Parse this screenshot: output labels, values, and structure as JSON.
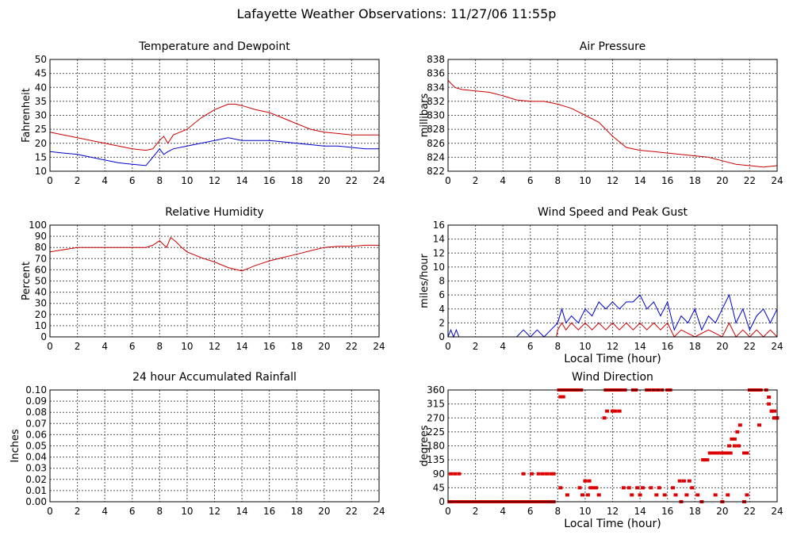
{
  "page": {
    "title": "Lafayette Weather Observations: 11/27/06 11:55p"
  },
  "chart_data": [
    {
      "id": "temp",
      "type": "line",
      "title": "Temperature and Dewpoint",
      "xlabel": "",
      "ylabel": "Fahrenheit",
      "xlim": [
        0,
        24
      ],
      "ylim": [
        10,
        50
      ],
      "xticks": [
        0,
        2,
        4,
        6,
        8,
        10,
        12,
        14,
        16,
        18,
        20,
        22,
        24
      ],
      "yticks": [
        10,
        15,
        20,
        25,
        30,
        35,
        40,
        45,
        50
      ],
      "grid": true,
      "series": [
        {
          "color": "#cc0000",
          "x": [
            0,
            1,
            2,
            3,
            4,
            5,
            6,
            7,
            7.5,
            8,
            8.3,
            8.6,
            9,
            10,
            11,
            12,
            12.5,
            13,
            13.5,
            14,
            15,
            16,
            17,
            18,
            19,
            20,
            21,
            22,
            23,
            24
          ],
          "y": [
            24,
            23,
            22,
            21,
            20,
            19,
            18,
            17.5,
            18,
            21,
            22.5,
            20,
            23,
            25,
            29,
            32,
            33,
            34,
            34,
            33.5,
            32,
            31,
            29,
            27,
            25,
            24,
            23.5,
            23,
            23,
            23
          ]
        },
        {
          "color": "#0000cc",
          "x": [
            0,
            1,
            2,
            3,
            4,
            5,
            6,
            7,
            7.5,
            8,
            8.3,
            8.6,
            9,
            10,
            11,
            12,
            12.5,
            13,
            13.5,
            14,
            15,
            16,
            17,
            18,
            19,
            20,
            21,
            22,
            23,
            24
          ],
          "y": [
            17,
            16.5,
            16,
            15,
            14,
            13,
            12.5,
            12,
            15,
            18,
            16,
            17,
            18,
            19,
            20,
            21,
            21.5,
            22,
            21.5,
            21,
            21,
            21,
            20.5,
            20,
            19.5,
            19,
            19,
            18.5,
            18,
            18
          ]
        }
      ]
    },
    {
      "id": "pressure",
      "type": "line",
      "title": "Air Pressure",
      "xlabel": "",
      "ylabel": "millibars",
      "xlim": [
        0,
        24
      ],
      "ylim": [
        822,
        838
      ],
      "xticks": [
        0,
        2,
        4,
        6,
        8,
        10,
        12,
        14,
        16,
        18,
        20,
        22,
        24
      ],
      "yticks": [
        822,
        824,
        826,
        828,
        830,
        832,
        834,
        836,
        838
      ],
      "grid": true,
      "series": [
        {
          "color": "#cc0000",
          "x": [
            0,
            0.5,
            1,
            2,
            3,
            4,
            5,
            6,
            7,
            8,
            9,
            10,
            11,
            12,
            13,
            14,
            15,
            16,
            17,
            18,
            19,
            20,
            21,
            22,
            23,
            24
          ],
          "y": [
            835,
            834,
            833.7,
            833.5,
            833.3,
            832.8,
            832.2,
            832,
            832,
            831.6,
            831,
            830,
            829,
            827,
            825.4,
            825,
            824.8,
            824.6,
            824.4,
            824.2,
            824,
            823.5,
            823,
            822.8,
            822.6,
            822.8
          ]
        }
      ]
    },
    {
      "id": "humidity",
      "type": "line",
      "title": "Relative Humidity",
      "xlabel": "",
      "ylabel": "Percent",
      "xlim": [
        0,
        24
      ],
      "ylim": [
        0,
        100
      ],
      "xticks": [
        0,
        2,
        4,
        6,
        8,
        10,
        12,
        14,
        16,
        18,
        20,
        22,
        24
      ],
      "yticks": [
        0,
        10,
        20,
        30,
        40,
        50,
        60,
        70,
        80,
        90,
        100
      ],
      "grid": true,
      "series": [
        {
          "color": "#cc0000",
          "x": [
            0,
            1,
            2,
            3,
            4,
            5,
            6,
            7,
            7.5,
            8,
            8.5,
            8.8,
            9.2,
            9.6,
            10,
            11,
            12,
            13,
            14,
            15,
            16,
            17,
            18,
            19,
            20,
            21,
            22,
            23,
            24
          ],
          "y": [
            76,
            78,
            80,
            80,
            80,
            80,
            80,
            80,
            82,
            86,
            80,
            89,
            85,
            80,
            76,
            71,
            67,
            62,
            59,
            64,
            68,
            71,
            74,
            77,
            80,
            81,
            81,
            82,
            82
          ]
        }
      ]
    },
    {
      "id": "wind",
      "type": "line",
      "title": "Wind Speed and Peak Gust",
      "xlabel": "Local Time (hour)",
      "ylabel": "miles/hour",
      "xlim": [
        0,
        24
      ],
      "ylim": [
        0,
        16
      ],
      "xticks": [
        0,
        2,
        4,
        6,
        8,
        10,
        12,
        14,
        16,
        18,
        20,
        22,
        24
      ],
      "yticks": [
        0,
        2,
        4,
        6,
        8,
        10,
        12,
        14,
        16
      ],
      "grid": true,
      "series": [
        {
          "color": "#0000cc",
          "x": [
            0,
            0.2,
            0.4,
            0.6,
            0.8,
            1,
            5,
            5.5,
            6,
            6.5,
            7,
            7.5,
            8,
            8.3,
            8.6,
            9,
            9.5,
            10,
            10.5,
            11,
            11.5,
            12,
            12.5,
            13,
            13.5,
            14,
            14.5,
            15,
            15.5,
            16,
            16.5,
            17,
            17.5,
            18,
            18.5,
            19,
            19.5,
            20,
            20.5,
            21,
            21.5,
            22,
            22.5,
            23,
            23.5,
            24
          ],
          "y": [
            0,
            1,
            0,
            1,
            0,
            0,
            0,
            1,
            0,
            1,
            0,
            1,
            2,
            4,
            2,
            3,
            2,
            4,
            3,
            5,
            4,
            5,
            4,
            5,
            5,
            6,
            4,
            5,
            3,
            5,
            1,
            3,
            2,
            4,
            1,
            3,
            2,
            4,
            6,
            2,
            4,
            1,
            3,
            4,
            2,
            4
          ]
        },
        {
          "color": "#cc0000",
          "x": [
            0,
            7.9,
            8,
            8.3,
            8.6,
            9,
            9.5,
            10,
            10.5,
            11,
            11.5,
            12,
            12.5,
            13,
            13.5,
            14,
            14.5,
            15,
            15.5,
            16,
            16.5,
            17,
            18,
            19,
            20,
            20.5,
            21,
            21.5,
            22,
            22.5,
            23,
            23.5,
            24
          ],
          "y": [
            0,
            0,
            1,
            2,
            1,
            2,
            1,
            2,
            1,
            2,
            1,
            2,
            1,
            2,
            1,
            2,
            1,
            2,
            1,
            2,
            0,
            1,
            0,
            1,
            0,
            2,
            0,
            1,
            0,
            1,
            0,
            1,
            0
          ]
        }
      ]
    },
    {
      "id": "rain",
      "type": "line",
      "title": "24 hour Accumulated Rainfall",
      "xlabel": "",
      "ylabel": "Inches",
      "xlim": [
        0,
        24
      ],
      "ylim": [
        0,
        0.1
      ],
      "xticks": [
        0,
        2,
        4,
        6,
        8,
        10,
        12,
        14,
        16,
        18,
        20,
        22,
        24
      ],
      "yticks": [
        0.0,
        0.01,
        0.02,
        0.03,
        0.04,
        0.05,
        0.06,
        0.07,
        0.08,
        0.09,
        0.1
      ],
      "ytick_decimals": 2,
      "grid": true,
      "series": [
        {
          "color": "#cc0000",
          "x": [
            0,
            24
          ],
          "y": [
            0,
            0
          ]
        }
      ]
    },
    {
      "id": "direction",
      "type": "scatter",
      "title": "Wind Direction",
      "xlabel": "Local Time (hour)",
      "ylabel": "degrees",
      "xlim": [
        0,
        24
      ],
      "ylim": [
        0,
        360
      ],
      "xticks": [
        0,
        2,
        4,
        6,
        8,
        10,
        12,
        14,
        16,
        18,
        20,
        22,
        24
      ],
      "yticks": [
        0,
        45,
        90,
        135,
        180,
        225,
        270,
        315,
        360
      ],
      "grid": true,
      "series": [
        {
          "color": "#dd0000",
          "x": [
            0.1,
            0.3,
            0.5,
            0.7,
            0.9,
            1.1,
            1.3,
            1.5,
            1.7,
            1.9,
            2.1,
            2.3,
            2.5,
            2.7,
            2.9,
            3.1,
            3.3,
            3.5,
            3.7,
            3.9,
            4.1,
            4.3,
            4.5,
            4.7,
            4.9,
            5.1,
            5.3,
            5.5,
            5.7,
            5.9,
            6.1,
            6.3,
            6.5,
            6.7,
            6.9,
            7.1,
            7.3,
            7.5,
            7.7,
            0.2,
            0.5,
            0.8,
            5.5,
            6.1,
            6.6,
            6.9,
            7.2,
            7.5,
            7.7,
            8.1,
            8.3,
            8.5,
            8.7,
            8.9,
            9.1,
            9.3,
            9.5,
            9.7,
            8.2,
            8.4,
            8.2,
            8.7,
            9.8,
            10.2,
            10.4,
            10.6,
            10.8,
            11.0,
            11.5,
            11.7,
            11.9,
            12.1,
            12.3,
            12.5,
            12.7,
            12.9,
            13.5,
            13.7,
            14.5,
            14.7,
            15.0,
            15.3,
            15.6,
            16.0,
            16.2,
            11.4,
            11.6,
            12.0,
            12.2,
            12.5,
            9.6,
            10.0,
            10.3,
            12.8,
            13.2,
            13.4,
            13.8,
            14.0,
            14.2,
            14.8,
            15.2,
            15.4,
            15.8,
            16.4,
            16.6,
            17.0,
            17.4,
            17.8,
            18.2,
            18.5,
            19.5,
            20.0,
            20.4,
            21.6,
            21.8,
            16.9,
            17.2,
            17.6,
            18.6,
            18.7,
            18.9,
            19.1,
            19.3,
            19.5,
            19.7,
            19.9,
            20.1,
            20.3,
            20.5,
            20.5,
            20.7,
            20.9,
            21.1,
            21.3,
            21.6,
            21.8,
            20.3,
            20.6,
            20.9,
            21.2,
            22.7,
            22.0,
            22.2,
            22.4,
            22.6,
            22.8,
            23.2,
            23.4,
            23.6,
            23.8,
            24.0,
            23.4,
            23.6,
            23.8,
            24.0,
            23.8
          ],
          "y": [
            0,
            0,
            0,
            0,
            0,
            0,
            0,
            0,
            0,
            0,
            0,
            0,
            0,
            0,
            0,
            0,
            0,
            0,
            0,
            0,
            0,
            0,
            0,
            0,
            0,
            0,
            0,
            0,
            0,
            0,
            0,
            0,
            0,
            0,
            0,
            0,
            0,
            0,
            0,
            90,
            90,
            90,
            90,
            90,
            90,
            90,
            90,
            90,
            90,
            360,
            360,
            360,
            360,
            360,
            360,
            360,
            360,
            360,
            338,
            338,
            45,
            22,
            22,
            22,
            45,
            45,
            45,
            22,
            360,
            360,
            360,
            360,
            360,
            360,
            360,
            360,
            360,
            360,
            360,
            360,
            360,
            360,
            360,
            360,
            360,
            270,
            292,
            292,
            292,
            292,
            45,
            67,
            67,
            45,
            45,
            22,
            45,
            22,
            45,
            45,
            22,
            45,
            22,
            45,
            22,
            0,
            22,
            45,
            22,
            0,
            22,
            0,
            22,
            0,
            22,
            67,
            67,
            67,
            135,
            135,
            135,
            157,
            157,
            157,
            157,
            157,
            157,
            157,
            157,
            180,
            202,
            202,
            225,
            247,
            157,
            157,
            157,
            157,
            180,
            180,
            247,
            360,
            360,
            360,
            360,
            360,
            360,
            315,
            292,
            270,
            270,
            337,
            292,
            270,
            270,
            292
          ]
        }
      ]
    }
  ]
}
